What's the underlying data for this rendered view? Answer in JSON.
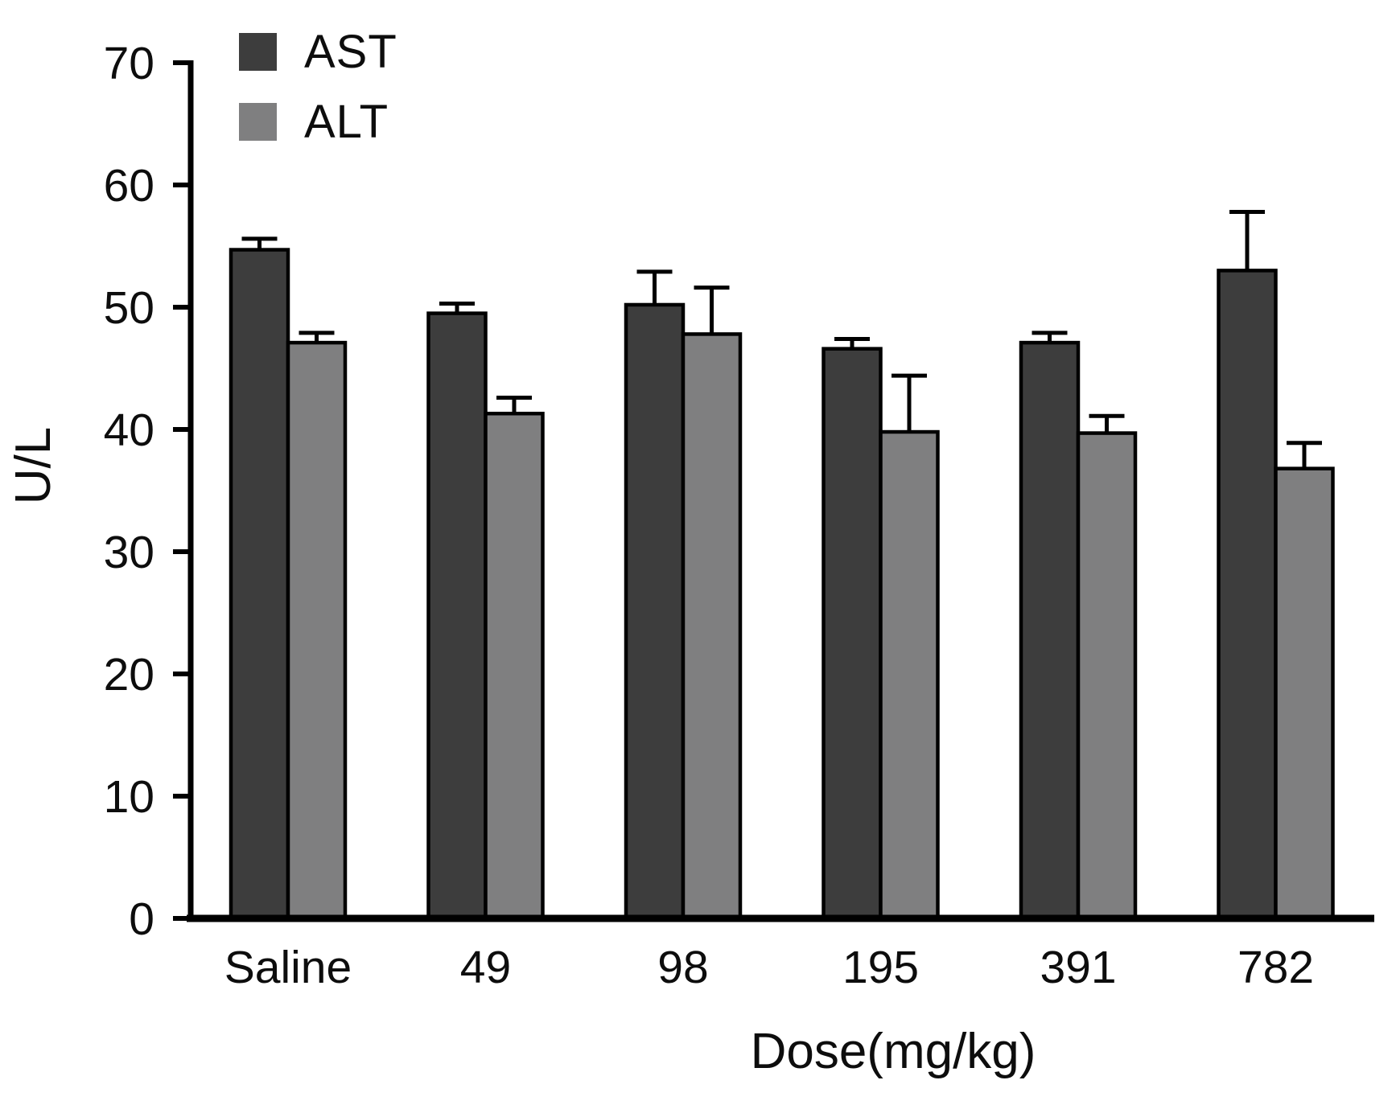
{
  "chart_data": {
    "type": "bar",
    "title": "",
    "xlabel": "Dose(mg/kg)",
    "ylabel": "U/L",
    "categories": [
      "Saline",
      "49",
      "98",
      "195",
      "391",
      "782"
    ],
    "series": [
      {
        "name": "AST",
        "color": "#3d3d3d",
        "values": [
          54.7,
          49.5,
          50.2,
          46.6,
          47.1,
          53.0
        ],
        "errors": [
          0.9,
          0.8,
          2.7,
          0.8,
          0.8,
          4.8
        ]
      },
      {
        "name": "ALT",
        "color": "#7f7f80",
        "values": [
          47.1,
          41.3,
          47.8,
          39.8,
          39.7,
          36.8
        ],
        "errors": [
          0.8,
          1.3,
          3.8,
          4.6,
          1.4,
          2.1
        ]
      }
    ],
    "ylim": [
      0,
      70
    ],
    "yticks": [
      0,
      10,
      20,
      30,
      40,
      50,
      60,
      70
    ],
    "grid": false,
    "legend_position": "top-left",
    "error_bars": "upper-only",
    "axis_color": "#000000",
    "text_color": "#0d0d0d",
    "background": "#ffffff"
  }
}
